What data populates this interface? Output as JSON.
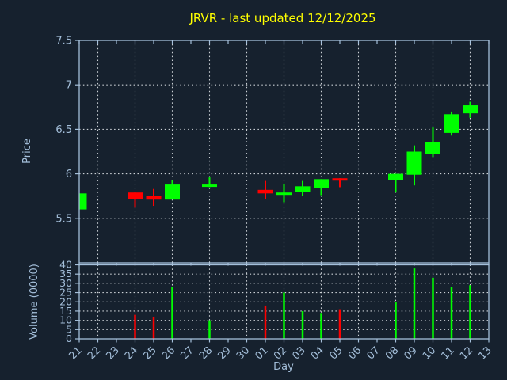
{
  "title": "JRVR - last updated 12/12/2025",
  "colors": {
    "background": "#16212e",
    "axis": "#a4bfda",
    "grid": "#ccd1d6",
    "title": "#ffff00",
    "up": "#00ff00",
    "down": "#ff0000"
  },
  "price_axis": {
    "label": "Price",
    "tick_labels": [
      "5.5",
      "6",
      "6.5",
      "7",
      "7.5"
    ],
    "tick_values": [
      5.5,
      6.0,
      6.5,
      7.0,
      7.5
    ],
    "gridlines": [
      5.5,
      6.0,
      6.5,
      7.0
    ]
  },
  "volume_axis": {
    "label": "Volume (0000)",
    "tick_labels": [
      "0",
      "5",
      "10",
      "15",
      "20",
      "25",
      "30",
      "35",
      "40"
    ],
    "tick_values": [
      0,
      5,
      10,
      15,
      20,
      25,
      30,
      35,
      40
    ],
    "gridlines": [
      5,
      10,
      15,
      20,
      25,
      30,
      35
    ]
  },
  "x_axis": {
    "label": "Day",
    "categories": [
      "21",
      "22",
      "23",
      "24",
      "25",
      "26",
      "27",
      "28",
      "29",
      "30",
      "01",
      "02",
      "03",
      "04",
      "05",
      "06",
      "07",
      "08",
      "09",
      "10",
      "11",
      "12",
      "13"
    ],
    "gridline_categories": [
      "22",
      "24",
      "26",
      "28",
      "30",
      "02",
      "04",
      "06",
      "08",
      "10",
      "12"
    ]
  },
  "chart_data": {
    "type": "candlestick",
    "title": "JRVR - last updated 12/12/2025",
    "xlabel": "Day",
    "ylabel": "Price",
    "ylabel2": "Volume (0000)",
    "legend": "none",
    "grid": "on",
    "price_ylim": [
      5.0,
      7.5
    ],
    "volume_ylim": [
      0,
      40
    ],
    "x_categories": [
      "21",
      "22",
      "23",
      "24",
      "25",
      "26",
      "27",
      "28",
      "29",
      "30",
      "01",
      "02",
      "03",
      "04",
      "05",
      "06",
      "07",
      "08",
      "09",
      "10",
      "11",
      "12",
      "13"
    ],
    "candles": [
      {
        "day": "21",
        "open": 5.6,
        "high": 5.78,
        "low": 5.6,
        "close": 5.78,
        "volume": 0
      },
      {
        "day": "24",
        "open": 5.79,
        "high": 5.79,
        "low": 5.62,
        "close": 5.72,
        "volume": 13
      },
      {
        "day": "25",
        "open": 5.75,
        "high": 5.83,
        "low": 5.64,
        "close": 5.71,
        "volume": 12
      },
      {
        "day": "26",
        "open": 5.71,
        "high": 5.93,
        "low": 5.71,
        "close": 5.88,
        "volume": 28
      },
      {
        "day": "28",
        "open": 5.87,
        "high": 5.96,
        "low": 5.85,
        "close": 5.88,
        "volume": 10
      },
      {
        "day": "01",
        "open": 5.82,
        "high": 5.92,
        "low": 5.72,
        "close": 5.78,
        "volume": 18
      },
      {
        "day": "02",
        "open": 5.78,
        "high": 5.89,
        "low": 5.68,
        "close": 5.79,
        "volume": 25
      },
      {
        "day": "03",
        "open": 5.8,
        "high": 5.92,
        "low": 5.75,
        "close": 5.86,
        "volume": 15
      },
      {
        "day": "04",
        "open": 5.84,
        "high": 5.94,
        "low": 5.76,
        "close": 5.94,
        "volume": 14
      },
      {
        "day": "05",
        "open": 5.95,
        "high": 5.95,
        "low": 5.85,
        "close": 5.93,
        "volume": 16
      },
      {
        "day": "08",
        "open": 5.93,
        "high": 6.0,
        "low": 5.79,
        "close": 6.0,
        "volume": 20
      },
      {
        "day": "09",
        "open": 5.99,
        "high": 6.32,
        "low": 5.87,
        "close": 6.25,
        "volume": 38
      },
      {
        "day": "10",
        "open": 6.22,
        "high": 6.52,
        "low": 6.19,
        "close": 6.36,
        "volume": 33
      },
      {
        "day": "11",
        "open": 6.46,
        "high": 6.7,
        "low": 6.43,
        "close": 6.67,
        "volume": 28
      },
      {
        "day": "12",
        "open": 6.68,
        "high": 6.81,
        "low": 6.63,
        "close": 6.77,
        "volume": 29
      }
    ]
  }
}
